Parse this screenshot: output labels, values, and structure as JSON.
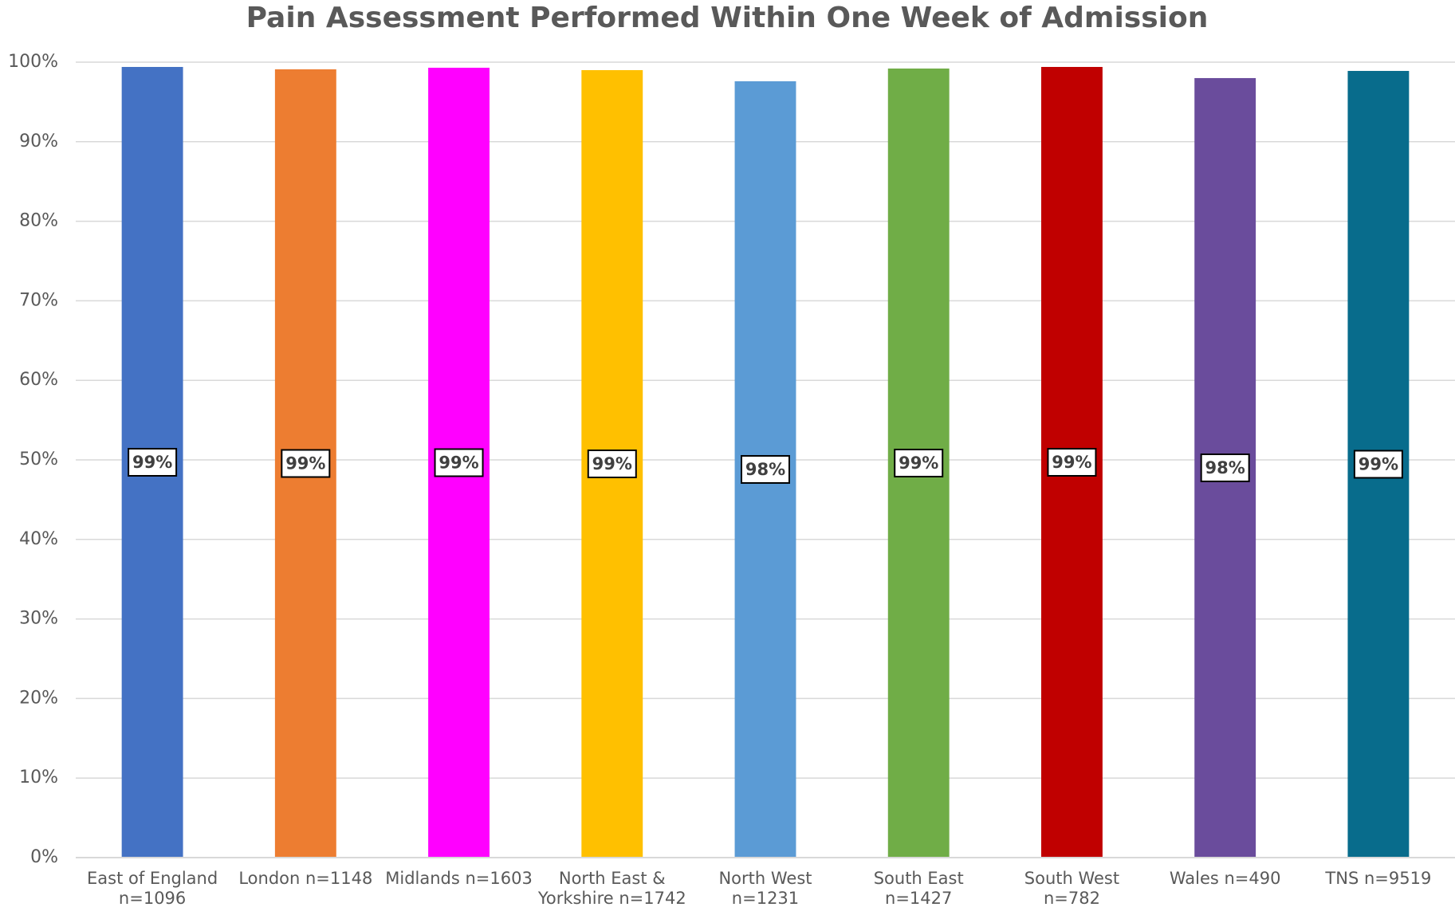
{
  "chart_data": {
    "type": "bar",
    "title": "Pain Assessment Performed Within One Week of Admission",
    "categories": [
      "East of England n=1096",
      "London n=1148",
      "Midlands n=1603",
      "North East & Yorkshire n=1742",
      "North West n=1231",
      "South East n=1427",
      "South West n=782",
      "Wales n=490",
      "TNS n=9519"
    ],
    "values": [
      99.4,
      99.1,
      99.3,
      99.0,
      97.6,
      99.2,
      99.4,
      98.0,
      98.9
    ],
    "value_labels": [
      "99%",
      "99%",
      "99%",
      "99%",
      "98%",
      "99%",
      "99%",
      "98%",
      "99%"
    ],
    "colors": [
      "#4472c4",
      "#ed7d31",
      "#ff00ff",
      "#ffc000",
      "#5b9bd5",
      "#70ad47",
      "#c00000",
      "#6a4c9c",
      "#086c8c"
    ],
    "ylim": [
      0,
      100
    ],
    "yticks": [
      {
        "value": 0,
        "label": "0%"
      },
      {
        "value": 10,
        "label": "10%"
      },
      {
        "value": 20,
        "label": "20%"
      },
      {
        "value": 30,
        "label": "30%"
      },
      {
        "value": 40,
        "label": "40%"
      },
      {
        "value": 50,
        "label": "50%"
      },
      {
        "value": 60,
        "label": "60%"
      },
      {
        "value": 70,
        "label": "70%"
      },
      {
        "value": 80,
        "label": "80%"
      },
      {
        "value": 90,
        "label": "90%"
      },
      {
        "value": 100,
        "label": "100%"
      }
    ],
    "grid": true
  }
}
